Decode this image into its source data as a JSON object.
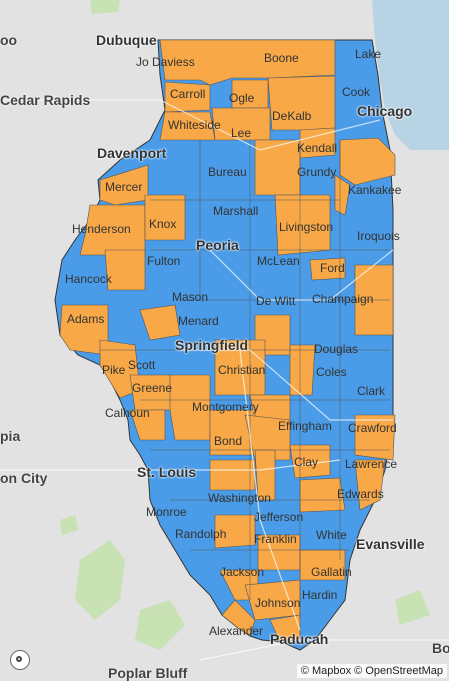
{
  "colors": {
    "blue": "#4a9ce8",
    "orange": "#f8a846",
    "water": "#b8d4e4",
    "land": "#e2e2e2",
    "green": "#c8e2b4"
  },
  "external_places": [
    "oo",
    "Cedar Rapids",
    "pia",
    "on City",
    "Poplar Bluff",
    "Bo"
  ],
  "cities": [
    "Dubuque",
    "Chicago",
    "Davenport",
    "Peoria",
    "Springfield",
    "St. Louis",
    "Evansville",
    "Paducah"
  ],
  "counties": {
    "jo_daviess": "Jo Daviess",
    "boone": "Boone",
    "lake": "Lake",
    "carroll": "Carroll",
    "ogle": "Ogle",
    "cook": "Cook",
    "dekalb": "DeKalb",
    "whiteside": "Whiteside",
    "lee": "Lee",
    "kendall": "Kendall",
    "bureau": "Bureau",
    "grundy": "Grundy",
    "mercer": "Mercer",
    "kankakee": "Kankakee",
    "marshall": "Marshall",
    "henderson": "Henderson",
    "knox": "Knox",
    "livingston": "Livingston",
    "iroquois": "Iroquois",
    "fulton": "Fulton",
    "mclean": "McLean",
    "ford": "Ford",
    "hancock": "Hancock",
    "mason": "Mason",
    "dewitt": "De Witt",
    "champaign": "Champaign",
    "adams": "Adams",
    "menard": "Menard",
    "douglas": "Douglas",
    "scott": "Scott",
    "pike": "Pike",
    "christian": "Christian",
    "coles": "Coles",
    "greene": "Greene",
    "clark": "Clark",
    "calhoun": "Calhoun",
    "montgomery": "Montgomery",
    "effingham": "Effingham",
    "crawford": "Crawford",
    "bond": "Bond",
    "clay": "Clay",
    "lawrence": "Lawrence",
    "edwards": "Edwards",
    "washington": "Washington",
    "monroe": "Monroe",
    "jefferson": "Jefferson",
    "randolph": "Randolph",
    "white": "White",
    "franklin": "Franklin",
    "jackson": "Jackson",
    "gallatin": "Gallatin",
    "johnson": "Johnson",
    "hardin": "Hardin",
    "alexander": "Alexander"
  },
  "attribution": "© Mapbox © OpenStreetMap"
}
